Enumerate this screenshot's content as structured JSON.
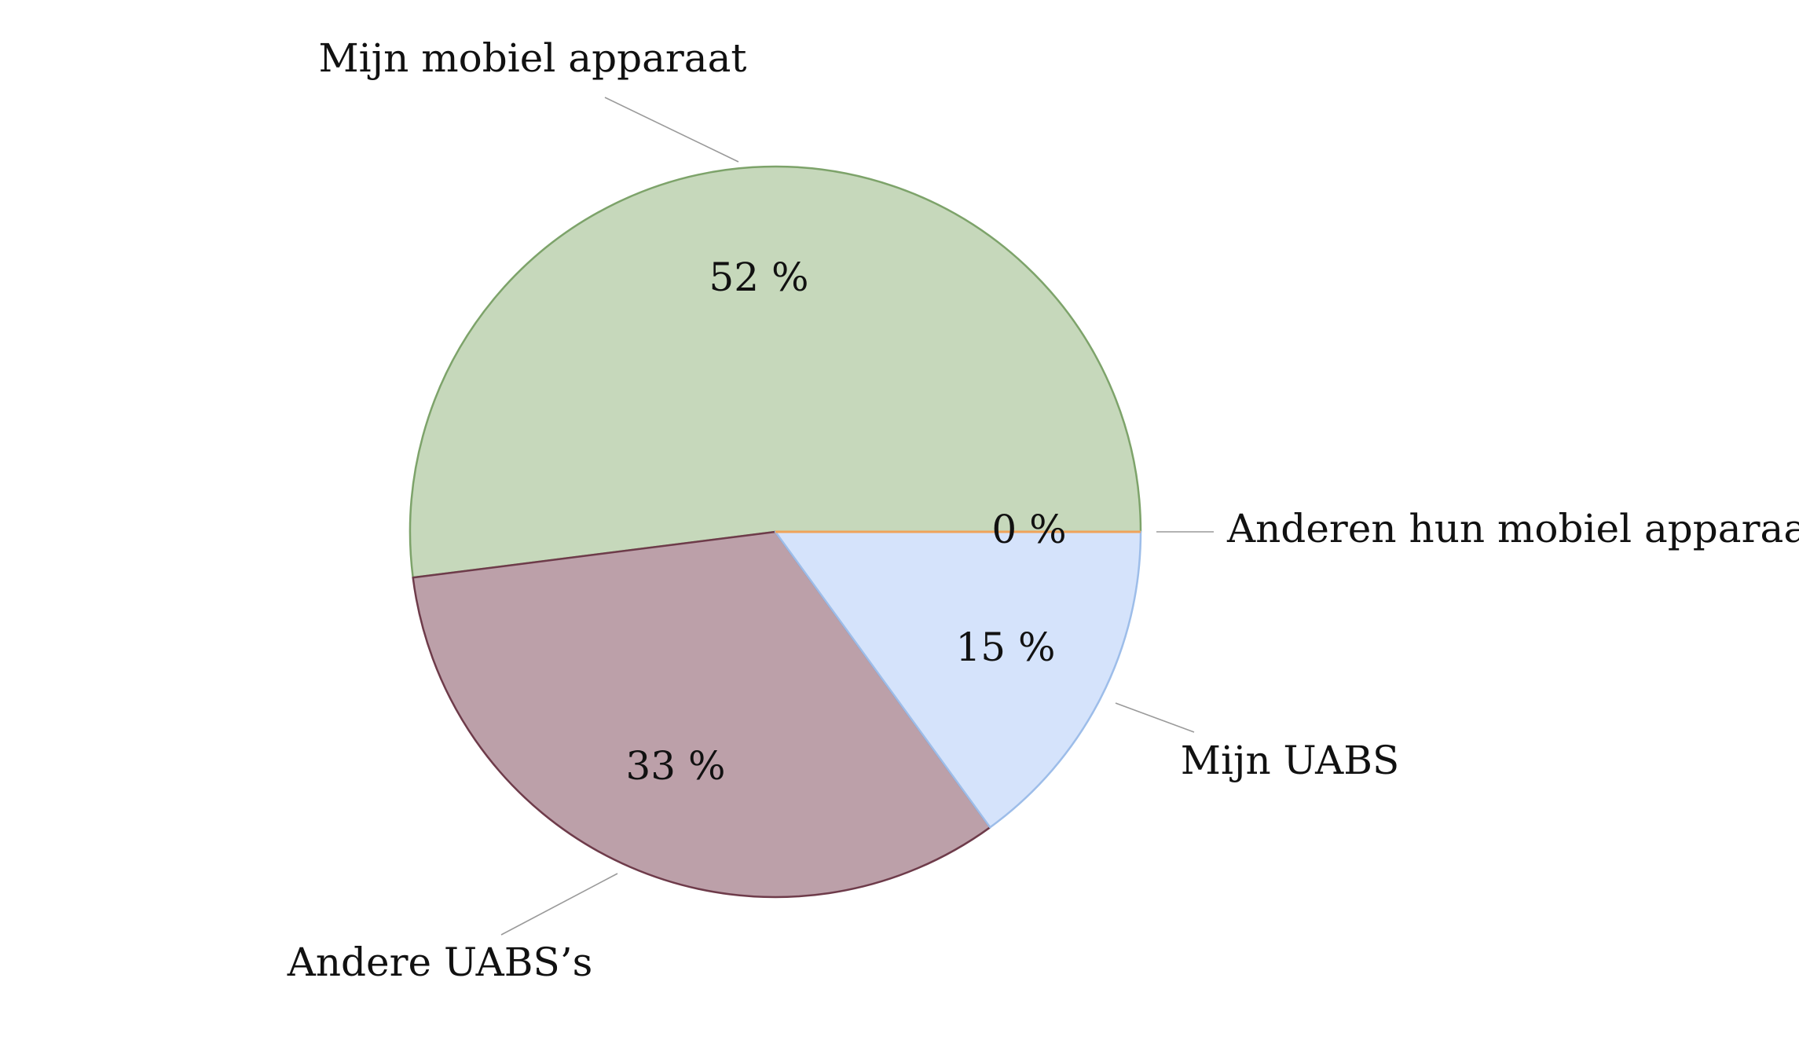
{
  "chart_data": {
    "type": "pie",
    "slices": [
      {
        "label": "Anderen hun mobiel apparaat",
        "value": 0,
        "value_text": "0 %",
        "fill": "#f4c38e",
        "stroke": "#f0a35a"
      },
      {
        "label": "Mijn mobiel apparaat",
        "value": 52,
        "value_text": "52 %",
        "fill": "#c6d8bb",
        "stroke": "#7da36a"
      },
      {
        "label": "Andere UABS’s",
        "value": 33,
        "value_text": "33 %",
        "fill": "#bca0a9",
        "stroke": "#6e3b4a"
      },
      {
        "label": "Mijn UABS",
        "value": 15,
        "value_text": "15 %",
        "fill": "#d5e3fb",
        "stroke": "#9dbde9"
      }
    ]
  }
}
